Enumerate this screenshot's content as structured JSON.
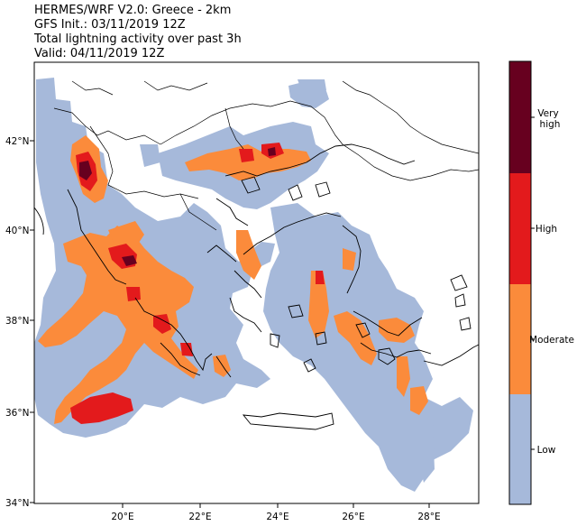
{
  "title": {
    "line1": "HERMES/WRF V2.0: Greece - 2km",
    "line2": "GFS Init.: 03/11/2019 12Z",
    "line3": "Total lightning activity over past 3h",
    "line4": "Valid: 04/11/2019 12Z"
  },
  "axes": {
    "lat_ticks": [
      "42°N",
      "40°N",
      "38°N",
      "36°N",
      "34°N"
    ],
    "lon_ticks": [
      "20°E",
      "22°E",
      "24°E",
      "26°E",
      "28°E"
    ],
    "lon_range": [
      18,
      29.5
    ],
    "lat_range": [
      34,
      43.8
    ]
  },
  "colorbar": {
    "levels": [
      {
        "label": "Low",
        "color": "#a6b9da"
      },
      {
        "label": "Moderate",
        "color": "#fb8b3b"
      },
      {
        "label": "High",
        "color": "#e31a1c"
      },
      {
        "label": "Very high",
        "color": "#67001f"
      }
    ],
    "label_very_high_1": "Very",
    "label_very_high_2": "high"
  },
  "colors": {
    "low": "#a6b9da",
    "moderate": "#fb8b3b",
    "high": "#e31a1c",
    "very_high": "#67001f",
    "coast": "#000000"
  }
}
